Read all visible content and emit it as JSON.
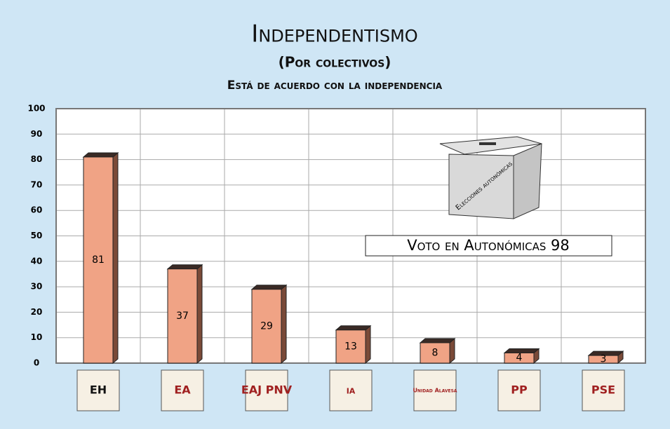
{
  "chart_data": {
    "type": "bar",
    "title": "Independentismo",
    "subtitle": "(Por colectivos)",
    "caption": "Está de acuerdo con la independencia",
    "annotations": [
      "Elecciones autonómicas",
      "Voto en Autonómicas 98"
    ],
    "categories": [
      "EH",
      "EA",
      "EAJ PNV",
      "ia",
      "Unidad Alavesa",
      "PP",
      "PSE"
    ],
    "values": [
      81,
      37,
      29,
      13,
      8,
      4,
      3
    ],
    "color": "#f0a385",
    "ylim": [
      0,
      100
    ],
    "yticks": [
      0,
      10,
      20,
      30,
      40,
      50,
      60,
      70,
      80,
      90,
      100
    ],
    "grid": true
  }
}
